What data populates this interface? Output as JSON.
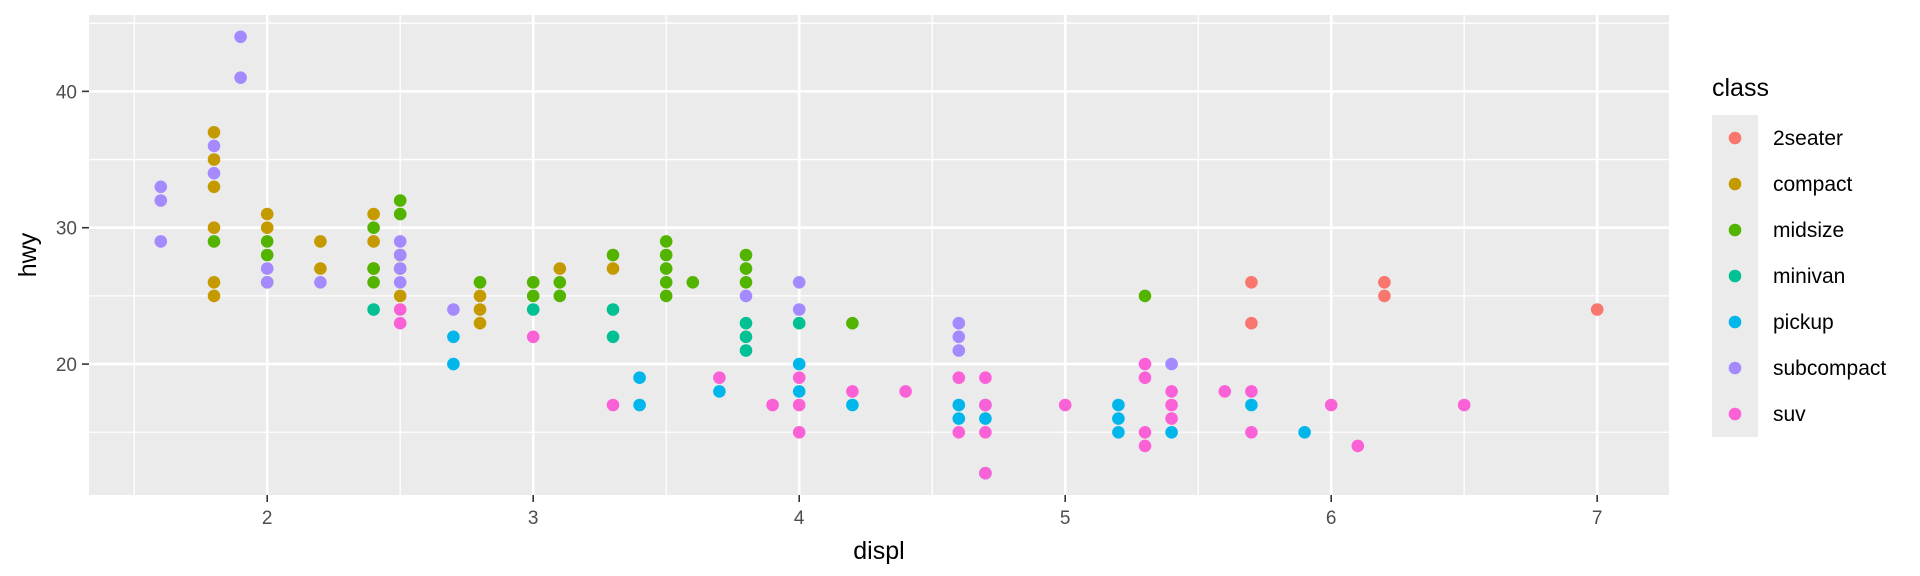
{
  "chart_data": {
    "type": "scatter",
    "xlabel": "displ",
    "ylabel": "hwy",
    "xlim": [
      1.33,
      7.27
    ],
    "ylim": [
      10.4,
      45.6
    ],
    "x_ticks": [
      2,
      3,
      4,
      5,
      6,
      7
    ],
    "y_ticks": [
      20,
      30,
      40
    ],
    "grid": true,
    "legend": {
      "title": "class",
      "position": "right"
    },
    "series": [
      {
        "name": "2seater",
        "color": "#F8766D",
        "points": [
          [
            5.7,
            26
          ],
          [
            5.7,
            23
          ],
          [
            6.2,
            26
          ],
          [
            6.2,
            25
          ],
          [
            7.0,
            24
          ]
        ]
      },
      {
        "name": "compact",
        "color": "#C49A00",
        "points": [
          [
            1.8,
            37
          ],
          [
            1.8,
            35
          ],
          [
            1.8,
            33
          ],
          [
            1.8,
            30
          ],
          [
            1.8,
            26
          ],
          [
            1.8,
            25
          ],
          [
            2.0,
            31
          ],
          [
            2.0,
            30
          ],
          [
            2.2,
            29
          ],
          [
            2.2,
            27
          ],
          [
            2.4,
            31
          ],
          [
            2.4,
            29
          ],
          [
            2.4,
            27
          ],
          [
            2.5,
            28
          ],
          [
            2.5,
            27
          ],
          [
            2.5,
            25
          ],
          [
            2.8,
            26
          ],
          [
            2.8,
            25
          ],
          [
            2.8,
            24
          ],
          [
            2.8,
            23
          ],
          [
            3.0,
            26
          ],
          [
            3.1,
            27
          ],
          [
            3.3,
            27
          ]
        ]
      },
      {
        "name": "midsize",
        "color": "#53B400",
        "points": [
          [
            1.8,
            29
          ],
          [
            2.0,
            29
          ],
          [
            2.0,
            28
          ],
          [
            2.0,
            26
          ],
          [
            2.4,
            30
          ],
          [
            2.4,
            27
          ],
          [
            2.4,
            26
          ],
          [
            2.5,
            32
          ],
          [
            2.5,
            31
          ],
          [
            2.8,
            26
          ],
          [
            3.0,
            26
          ],
          [
            3.0,
            25
          ],
          [
            3.1,
            26
          ],
          [
            3.1,
            25
          ],
          [
            3.3,
            28
          ],
          [
            3.5,
            29
          ],
          [
            3.5,
            28
          ],
          [
            3.5,
            27
          ],
          [
            3.5,
            26
          ],
          [
            3.5,
            25
          ],
          [
            3.6,
            26
          ],
          [
            3.8,
            28
          ],
          [
            3.8,
            27
          ],
          [
            3.8,
            26
          ],
          [
            4.2,
            23
          ],
          [
            5.3,
            25
          ]
        ]
      },
      {
        "name": "minivan",
        "color": "#00C094",
        "points": [
          [
            2.4,
            24
          ],
          [
            3.0,
            24
          ],
          [
            3.3,
            24
          ],
          [
            3.3,
            22
          ],
          [
            3.8,
            23
          ],
          [
            3.8,
            22
          ],
          [
            3.8,
            21
          ],
          [
            4.0,
            23
          ]
        ]
      },
      {
        "name": "pickup",
        "color": "#00B6EB",
        "points": [
          [
            2.7,
            22
          ],
          [
            2.7,
            20
          ],
          [
            3.4,
            19
          ],
          [
            3.4,
            17
          ],
          [
            3.7,
            18
          ],
          [
            4.0,
            20
          ],
          [
            4.0,
            18
          ],
          [
            4.2,
            17
          ],
          [
            4.6,
            17
          ],
          [
            4.6,
            16
          ],
          [
            4.7,
            17
          ],
          [
            4.7,
            16
          ],
          [
            4.7,
            12
          ],
          [
            5.2,
            17
          ],
          [
            5.2,
            16
          ],
          [
            5.2,
            15
          ],
          [
            5.4,
            15
          ],
          [
            5.7,
            17
          ],
          [
            5.9,
            15
          ]
        ]
      },
      {
        "name": "subcompact",
        "color": "#A58AFF",
        "points": [
          [
            1.6,
            33
          ],
          [
            1.6,
            32
          ],
          [
            1.6,
            29
          ],
          [
            1.8,
            36
          ],
          [
            1.8,
            34
          ],
          [
            1.9,
            44
          ],
          [
            1.9,
            41
          ],
          [
            2.0,
            27
          ],
          [
            2.0,
            26
          ],
          [
            2.2,
            26
          ],
          [
            2.5,
            29
          ],
          [
            2.5,
            28
          ],
          [
            2.5,
            27
          ],
          [
            2.5,
            26
          ],
          [
            2.7,
            24
          ],
          [
            3.8,
            25
          ],
          [
            4.0,
            26
          ],
          [
            4.0,
            24
          ],
          [
            4.6,
            23
          ],
          [
            4.6,
            22
          ],
          [
            4.6,
            21
          ],
          [
            5.4,
            20
          ]
        ]
      },
      {
        "name": "suv",
        "color": "#FB61D7",
        "points": [
          [
            2.5,
            24
          ],
          [
            2.5,
            23
          ],
          [
            3.0,
            22
          ],
          [
            3.3,
            17
          ],
          [
            3.7,
            19
          ],
          [
            3.9,
            17
          ],
          [
            4.0,
            19
          ],
          [
            4.0,
            17
          ],
          [
            4.0,
            15
          ],
          [
            4.2,
            18
          ],
          [
            4.4,
            18
          ],
          [
            4.6,
            19
          ],
          [
            4.6,
            15
          ],
          [
            4.7,
            19
          ],
          [
            4.7,
            17
          ],
          [
            4.7,
            15
          ],
          [
            4.7,
            12
          ],
          [
            5.0,
            17
          ],
          [
            5.3,
            20
          ],
          [
            5.3,
            19
          ],
          [
            5.3,
            15
          ],
          [
            5.3,
            14
          ],
          [
            5.4,
            18
          ],
          [
            5.4,
            17
          ],
          [
            5.4,
            16
          ],
          [
            5.6,
            18
          ],
          [
            5.7,
            18
          ],
          [
            5.7,
            15
          ],
          [
            6.0,
            17
          ],
          [
            6.1,
            14
          ],
          [
            6.5,
            17
          ]
        ]
      }
    ]
  }
}
